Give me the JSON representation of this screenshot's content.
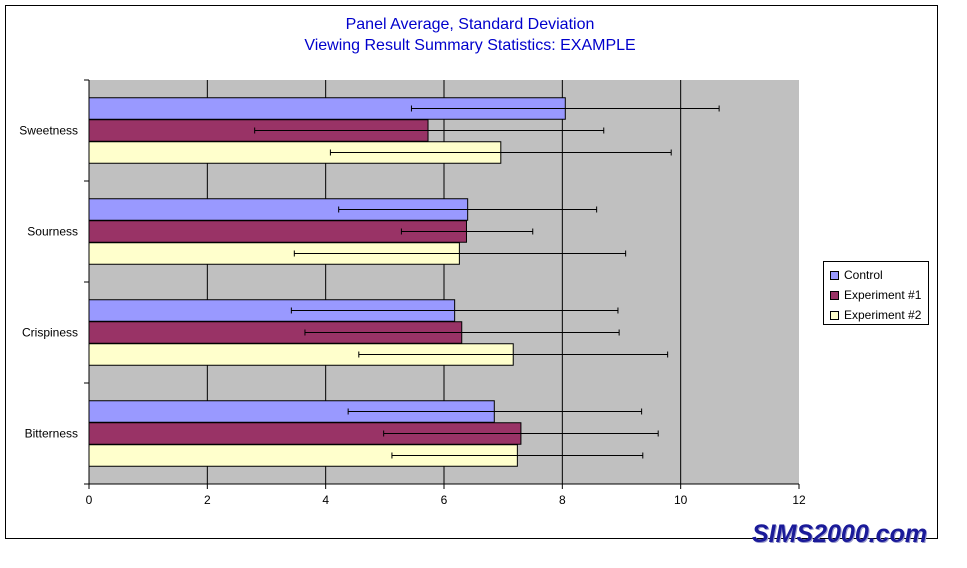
{
  "chart_data": {
    "type": "bar",
    "orientation": "horizontal",
    "title": "Panel Average, Standard Deviation",
    "subtitle": "Viewing Result Summary Statistics: EXAMPLE",
    "categories": [
      "Sweetness",
      "Sourness",
      "Crispiness",
      "Bitterness"
    ],
    "series": [
      {
        "name": "Control",
        "color": "#9999ff",
        "values": [
          8.05,
          6.4,
          6.18,
          6.85
        ],
        "error_low": [
          5.45,
          4.22,
          3.42,
          4.38
        ],
        "error_high": [
          10.65,
          8.58,
          8.94,
          9.34
        ]
      },
      {
        "name": "Experiment #1",
        "color": "#993366",
        "values": [
          5.73,
          6.38,
          6.3,
          7.3
        ],
        "error_low": [
          2.8,
          5.28,
          3.65,
          4.98
        ],
        "error_high": [
          8.7,
          7.5,
          8.96,
          9.62
        ]
      },
      {
        "name": "Experiment #2",
        "color": "#ffffcc",
        "values": [
          6.96,
          6.26,
          7.17,
          7.24
        ],
        "error_low": [
          4.08,
          3.47,
          4.56,
          5.12
        ],
        "error_high": [
          9.84,
          9.07,
          9.78,
          9.36
        ]
      }
    ],
    "xticks": [
      "0",
      "2",
      "4",
      "6",
      "8",
      "10",
      "12"
    ],
    "xlim": [
      0,
      12
    ],
    "grid": true,
    "plot_background": "#c0c0c0",
    "legend_position": "right"
  },
  "watermark": "SIMS2000.com"
}
